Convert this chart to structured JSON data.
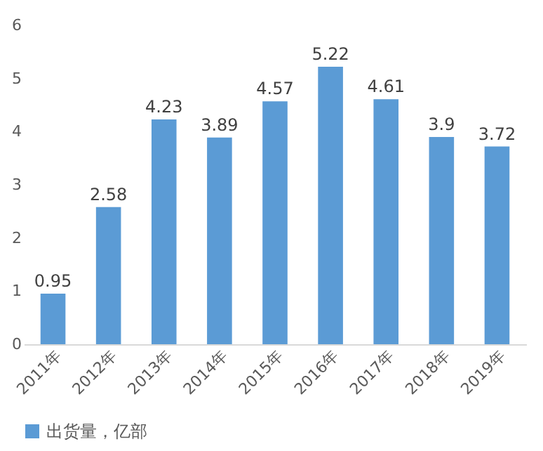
{
  "chart_data": {
    "type": "bar",
    "categories": [
      "2011年",
      "2012年",
      "2013年",
      "2014年",
      "2015年",
      "2016年",
      "2017年",
      "2018年",
      "2019年"
    ],
    "series": [
      {
        "name": "出货量，亿部",
        "color": "#5b9bd5",
        "values": [
          0.95,
          2.58,
          4.23,
          3.89,
          4.57,
          5.22,
          4.61,
          3.9,
          3.72
        ]
      }
    ],
    "ylim": [
      0,
      6
    ],
    "yticks": [
      0,
      1,
      2,
      3,
      4,
      5,
      6
    ],
    "grid": false,
    "legend": "bottom",
    "data_labels": true
  }
}
